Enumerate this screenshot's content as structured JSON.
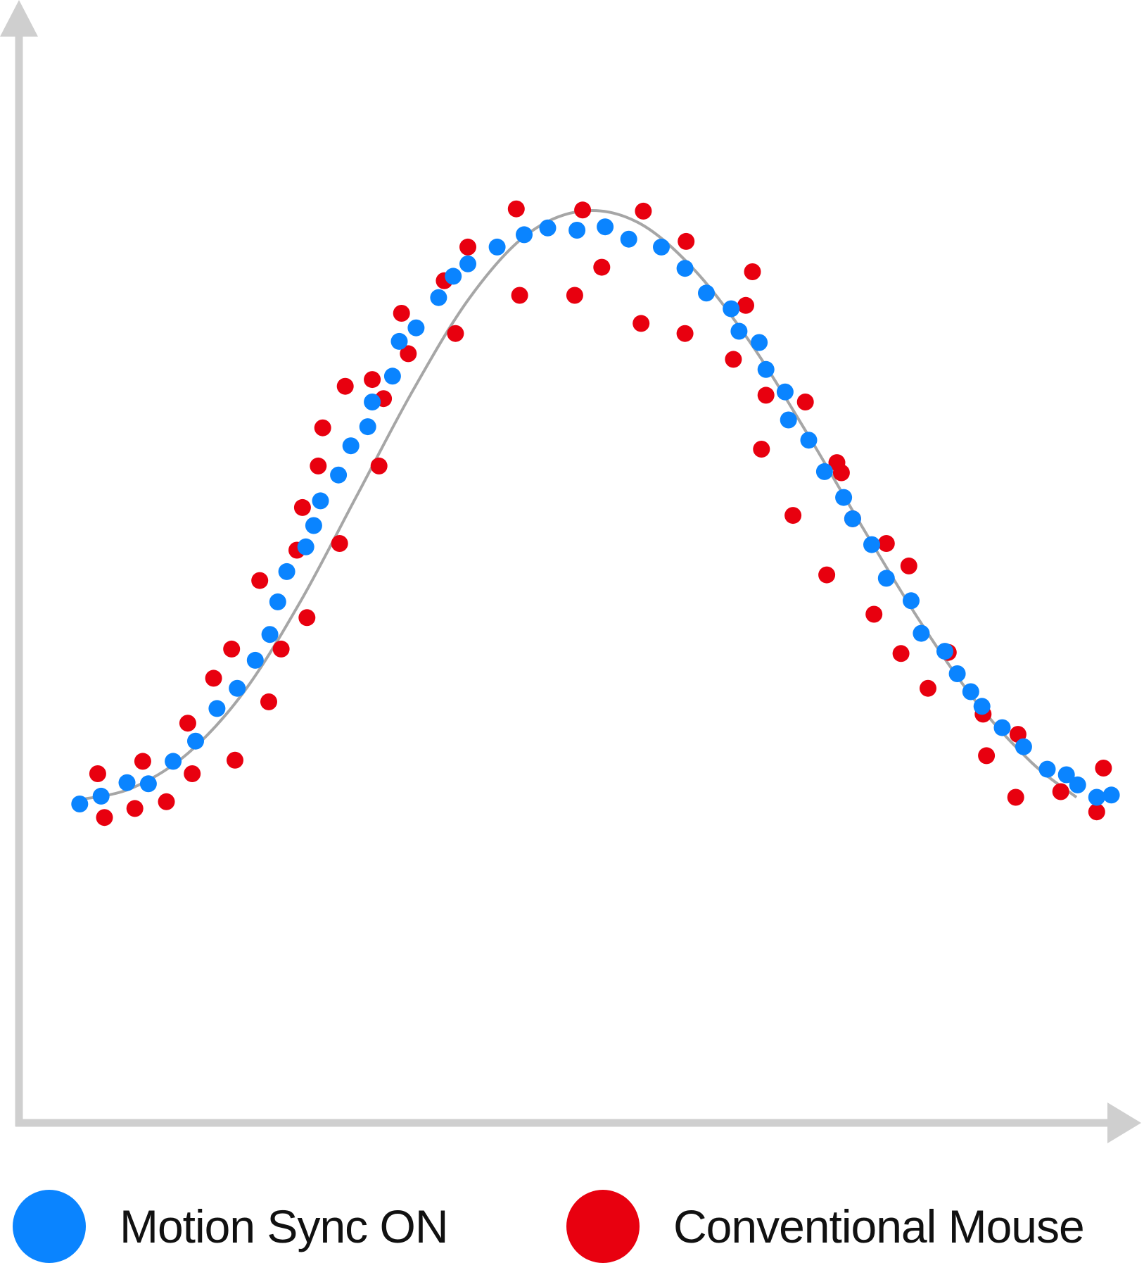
{
  "colors": {
    "motion_sync": "#0a84ff",
    "conventional": "#e8000f",
    "curve": "#a6a6a6",
    "axis": "#cfcfcf"
  },
  "legend": {
    "motion_sync_label": "Motion Sync ON",
    "conventional_label": "Conventional Mouse"
  },
  "chart_data": {
    "type": "scatter",
    "title": "",
    "xlabel": "",
    "ylabel": "",
    "xlim": [
      0,
      100
    ],
    "ylim": [
      0,
      100
    ],
    "grid": false,
    "axes_tick_labels": false,
    "legend_position": "bottom",
    "trend_line": [
      [
        5.5,
        28.8
      ],
      [
        10,
        29.8
      ],
      [
        15,
        32.9
      ],
      [
        20,
        38.4
      ],
      [
        25,
        46.4
      ],
      [
        30,
        55.8
      ],
      [
        35,
        65.2
      ],
      [
        40,
        73.4
      ],
      [
        45,
        79.0
      ],
      [
        50,
        81.2
      ],
      [
        55,
        80.2
      ],
      [
        60,
        76.0
      ],
      [
        65,
        69.5
      ],
      [
        70,
        61.5
      ],
      [
        75,
        53.0
      ],
      [
        80,
        44.8
      ],
      [
        85,
        37.6
      ],
      [
        90,
        32.1
      ],
      [
        94,
        29.0
      ]
    ],
    "series": [
      {
        "name": "Motion Sync ON",
        "points": [
          [
            5.4,
            28.4
          ],
          [
            7.3,
            29.1
          ],
          [
            9.6,
            30.3
          ],
          [
            11.5,
            30.2
          ],
          [
            13.7,
            32.2
          ],
          [
            15.7,
            34.0
          ],
          [
            17.6,
            36.9
          ],
          [
            19.4,
            38.7
          ],
          [
            21.0,
            41.2
          ],
          [
            22.3,
            43.5
          ],
          [
            23.0,
            46.4
          ],
          [
            23.8,
            49.1
          ],
          [
            25.5,
            51.3
          ],
          [
            26.2,
            53.2
          ],
          [
            26.8,
            55.4
          ],
          [
            28.4,
            57.7
          ],
          [
            29.5,
            60.3
          ],
          [
            31.0,
            62.0
          ],
          [
            31.4,
            64.2
          ],
          [
            33.2,
            66.5
          ],
          [
            33.8,
            69.6
          ],
          [
            35.3,
            70.8
          ],
          [
            37.3,
            73.5
          ],
          [
            38.6,
            75.4
          ],
          [
            39.9,
            76.5
          ],
          [
            42.5,
            78.0
          ],
          [
            44.9,
            79.1
          ],
          [
            47.0,
            79.7
          ],
          [
            49.6,
            79.5
          ],
          [
            52.1,
            79.8
          ],
          [
            54.2,
            78.7
          ],
          [
            57.1,
            78.0
          ],
          [
            59.2,
            76.1
          ],
          [
            61.1,
            73.9
          ],
          [
            63.3,
            72.5
          ],
          [
            64.0,
            70.5
          ],
          [
            65.8,
            69.5
          ],
          [
            66.4,
            67.1
          ],
          [
            68.1,
            65.1
          ],
          [
            68.4,
            62.6
          ],
          [
            70.2,
            60.8
          ],
          [
            71.6,
            58.0
          ],
          [
            73.3,
            55.7
          ],
          [
            74.1,
            53.8
          ],
          [
            75.8,
            51.5
          ],
          [
            77.1,
            48.5
          ],
          [
            79.3,
            46.5
          ],
          [
            80.2,
            43.6
          ],
          [
            82.3,
            42.0
          ],
          [
            83.4,
            40.0
          ],
          [
            84.6,
            38.4
          ],
          [
            85.6,
            37.1
          ],
          [
            87.4,
            35.2
          ],
          [
            89.3,
            33.5
          ],
          [
            91.4,
            31.5
          ],
          [
            93.1,
            31.0
          ],
          [
            94.1,
            30.1
          ],
          [
            95.8,
            29.0
          ],
          [
            97.1,
            29.2
          ]
        ]
      },
      {
        "name": "Conventional Mouse",
        "points": [
          [
            7.0,
            31.1
          ],
          [
            7.6,
            27.2
          ],
          [
            10.3,
            28.0
          ],
          [
            11.0,
            32.2
          ],
          [
            13.1,
            28.6
          ],
          [
            15.0,
            35.6
          ],
          [
            15.4,
            31.1
          ],
          [
            17.3,
            39.6
          ],
          [
            18.9,
            42.2
          ],
          [
            19.2,
            32.3
          ],
          [
            21.4,
            48.3
          ],
          [
            22.2,
            37.5
          ],
          [
            23.3,
            42.2
          ],
          [
            24.7,
            51.0
          ],
          [
            25.2,
            54.8
          ],
          [
            25.6,
            45.0
          ],
          [
            26.6,
            58.5
          ],
          [
            27.0,
            61.9
          ],
          [
            28.5,
            51.6
          ],
          [
            29.0,
            65.6
          ],
          [
            31.4,
            66.2
          ],
          [
            32.0,
            58.5
          ],
          [
            32.4,
            64.5
          ],
          [
            34.0,
            72.1
          ],
          [
            34.6,
            68.5
          ],
          [
            37.8,
            75.0
          ],
          [
            38.8,
            70.3
          ],
          [
            39.9,
            78.0
          ],
          [
            44.2,
            81.4
          ],
          [
            44.5,
            73.7
          ],
          [
            49.4,
            73.7
          ],
          [
            50.1,
            81.3
          ],
          [
            51.8,
            76.2
          ],
          [
            55.3,
            71.2
          ],
          [
            55.5,
            81.2
          ],
          [
            59.2,
            70.3
          ],
          [
            59.3,
            78.5
          ],
          [
            63.5,
            68.0
          ],
          [
            64.6,
            72.8
          ],
          [
            65.2,
            75.8
          ],
          [
            66.0,
            60.0
          ],
          [
            66.4,
            64.8
          ],
          [
            68.8,
            54.1
          ],
          [
            69.9,
            64.2
          ],
          [
            71.8,
            48.8
          ],
          [
            72.7,
            58.8
          ],
          [
            73.1,
            57.9
          ],
          [
            74.1,
            53.8
          ],
          [
            76.0,
            45.3
          ],
          [
            77.1,
            51.6
          ],
          [
            78.4,
            41.8
          ],
          [
            79.1,
            49.6
          ],
          [
            80.8,
            38.7
          ],
          [
            82.6,
            41.9
          ],
          [
            85.7,
            36.4
          ],
          [
            86.0,
            32.7
          ],
          [
            88.6,
            29.0
          ],
          [
            88.8,
            34.6
          ],
          [
            92.6,
            29.5
          ],
          [
            95.8,
            27.7
          ],
          [
            96.4,
            31.6
          ]
        ]
      }
    ]
  }
}
